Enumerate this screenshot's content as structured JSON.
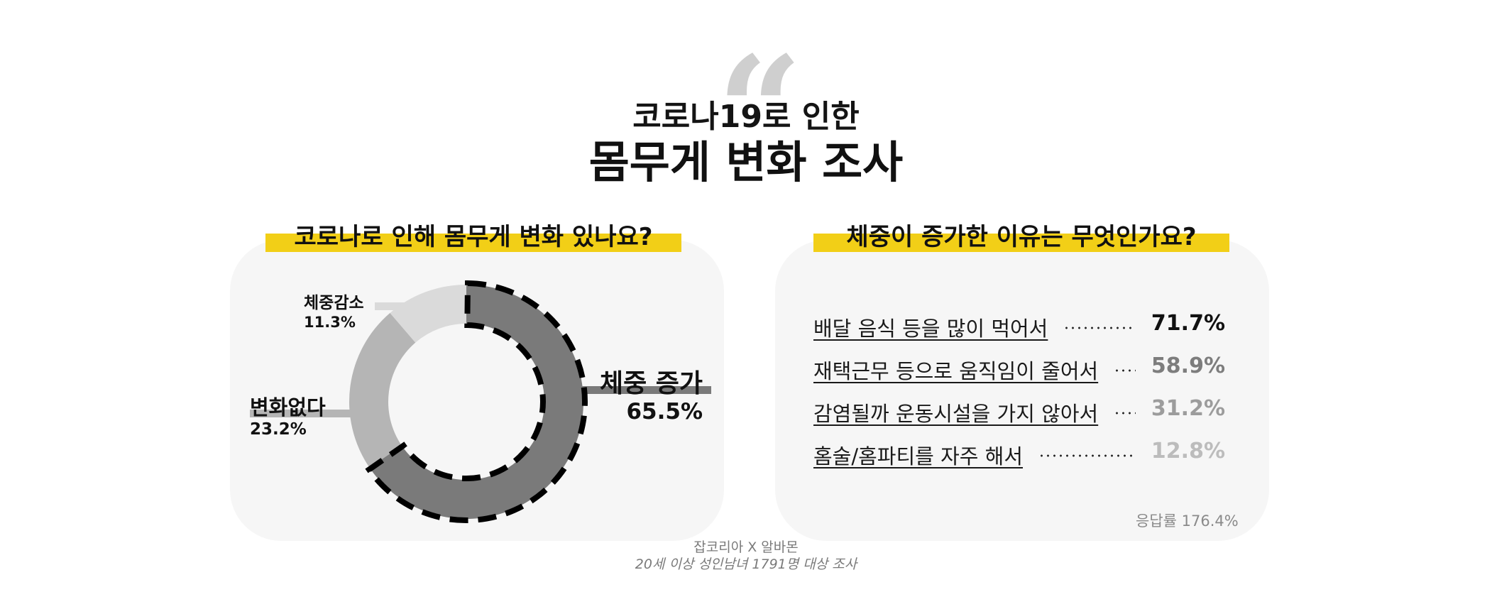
{
  "header": {
    "title_line1": "코로나19로 인한",
    "title_line2": "몸무게 변화 조사"
  },
  "colors": {
    "accent_yellow": "#f2cf17",
    "increase": "#7a7a7a",
    "no_change": "#b5b5b5",
    "decrease": "#dadada",
    "panel_bg": "#f6f6f6"
  },
  "chart_data": [
    {
      "type": "pie",
      "title": "코로나로 인해 몸무게 변화 있나요?",
      "slices": [
        {
          "label": "체중 증가",
          "value": 65.5,
          "display": "65.5%",
          "color": "#7a7a7a"
        },
        {
          "label": "변화없다",
          "value": 23.2,
          "display": "23.2%",
          "color": "#b5b5b5"
        },
        {
          "label": "체중감소",
          "value": 11.3,
          "display": "11.3%",
          "color": "#dadada"
        }
      ]
    },
    {
      "type": "table",
      "title": "체중이 증가한 이유는 무엇인가요?",
      "rows": [
        {
          "label": "배달 음식 등을 많이 먹어서",
          "value": 71.7,
          "display": "71.7%",
          "color": "#111111"
        },
        {
          "label": "재택근무 등으로 움직임이 줄어서",
          "value": 58.9,
          "display": "58.9%",
          "color": "#7d7d7d"
        },
        {
          "label": "감염될까 운동시설을 가지 않아서",
          "value": 31.2,
          "display": "31.2%",
          "color": "#9c9c9c"
        },
        {
          "label": "홈술/홈파티를 자주 해서",
          "value": 12.8,
          "display": "12.8%",
          "color": "#bcbcbc"
        }
      ],
      "note": "응답률 176.4%"
    }
  ],
  "footer": {
    "source": "잡코리아 X 알바몬",
    "sample": "20세 이상 성인남녀 1791명 대상 조사"
  }
}
